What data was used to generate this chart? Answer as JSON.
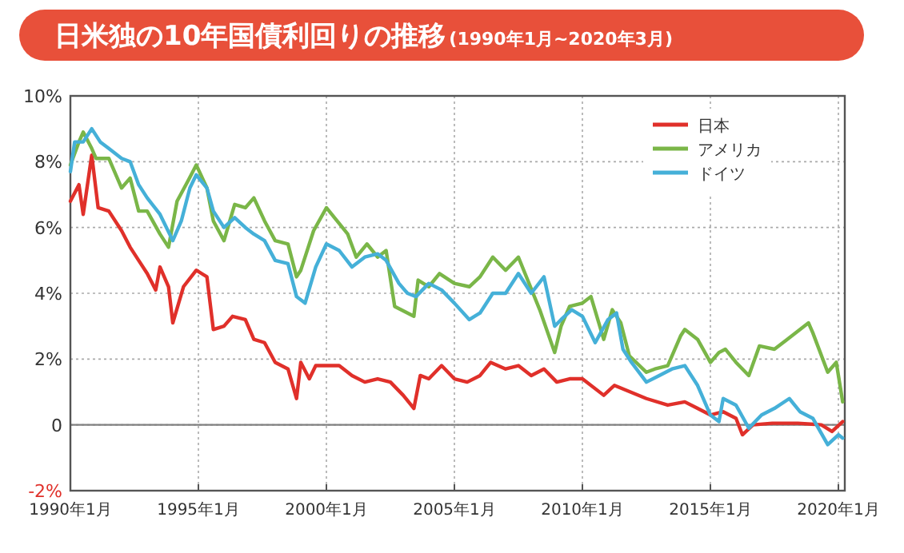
{
  "chart_data": {
    "type": "line",
    "title": "日米独の10年国債利回りの推移",
    "subtitle": "(1990年1月~2020年3月)",
    "xlim": [
      "1990-01",
      "2020-04"
    ],
    "xticks": [
      {
        "value": "1990-01",
        "label": "1990年1月"
      },
      {
        "value": "1995-01",
        "label": "1995年1月"
      },
      {
        "value": "2000-01",
        "label": "2000年1月"
      },
      {
        "value": "2005-01",
        "label": "2005年1月"
      },
      {
        "value": "2010-01",
        "label": "2010年1月"
      },
      {
        "value": "2015-01",
        "label": "2015年1月"
      },
      {
        "value": "2020-01",
        "label": "2020年1月"
      }
    ],
    "ylim": [
      -2,
      10
    ],
    "yticks": [
      {
        "value": -2,
        "label": "-2%"
      },
      {
        "value": 0,
        "label": "0"
      },
      {
        "value": 2,
        "label": "2%"
      },
      {
        "value": 4,
        "label": "4%"
      },
      {
        "value": 6,
        "label": "6%"
      },
      {
        "value": 8,
        "label": "8%"
      },
      {
        "value": 10,
        "label": "10%"
      }
    ],
    "grid": true,
    "legend": "top right",
    "marker": "none",
    "line_style": "solid",
    "ref_lines": [
      {
        "axis": "y",
        "value": 0,
        "color": "#808080"
      }
    ],
    "series": [
      {
        "name": "日本",
        "color": "#e0302a",
        "x": [
          "1990-01",
          "1990-05",
          "1990-07",
          "1990-11",
          "1991-02",
          "1991-07",
          "1992-01",
          "1992-05",
          "1992-09",
          "1993-01",
          "1993-05",
          "1993-07",
          "1993-11",
          "1994-01",
          "1994-06",
          "1994-12",
          "1995-05",
          "1995-08",
          "1996-01",
          "1996-05",
          "1996-11",
          "1997-03",
          "1997-08",
          "1998-01",
          "1998-07",
          "1998-11",
          "1999-01",
          "1999-05",
          "1999-08",
          "2000-01",
          "2000-07",
          "2001-01",
          "2001-07",
          "2002-01",
          "2002-07",
          "2003-01",
          "2003-06",
          "2003-09",
          "2004-01",
          "2004-07",
          "2005-01",
          "2005-07",
          "2006-01",
          "2006-06",
          "2007-01",
          "2007-07",
          "2008-01",
          "2008-07",
          "2009-01",
          "2009-07",
          "2010-01",
          "2010-11",
          "2011-04",
          "2012-07",
          "2013-05",
          "2014-01",
          "2014-07",
          "2015-01",
          "2015-07",
          "2016-01",
          "2016-04",
          "2016-09",
          "2017-06",
          "2018-06",
          "2019-05",
          "2019-10",
          "2020-03"
        ],
        "values": [
          6.8,
          7.3,
          6.4,
          8.2,
          6.6,
          6.5,
          5.9,
          5.4,
          5.0,
          4.6,
          4.1,
          4.8,
          4.2,
          3.1,
          4.2,
          4.7,
          4.5,
          2.9,
          3.0,
          3.3,
          3.2,
          2.6,
          2.5,
          1.9,
          1.7,
          0.8,
          1.9,
          1.4,
          1.8,
          1.8,
          1.8,
          1.5,
          1.3,
          1.4,
          1.3,
          0.9,
          0.5,
          1.5,
          1.4,
          1.8,
          1.4,
          1.3,
          1.5,
          1.9,
          1.7,
          1.8,
          1.5,
          1.7,
          1.3,
          1.4,
          1.4,
          0.9,
          1.2,
          0.8,
          0.6,
          0.7,
          0.5,
          0.3,
          0.4,
          0.2,
          -0.3,
          0.0,
          0.05,
          0.05,
          0.0,
          -0.2,
          0.1
        ]
      },
      {
        "name": "アメリカ",
        "color": "#7ab648",
        "x": [
          "1990-01",
          "1990-05",
          "1990-07",
          "1990-11",
          "1991-01",
          "1991-07",
          "1992-01",
          "1992-05",
          "1992-09",
          "1993-01",
          "1993-07",
          "1993-11",
          "1994-03",
          "1994-08",
          "1994-12",
          "1995-05",
          "1995-08",
          "1996-01",
          "1996-06",
          "1996-11",
          "1997-03",
          "1997-08",
          "1998-01",
          "1998-07",
          "1998-11",
          "1999-01",
          "1999-07",
          "2000-01",
          "2000-06",
          "2000-11",
          "2001-03",
          "2001-08",
          "2002-01",
          "2002-05",
          "2002-09",
          "2003-06",
          "2003-08",
          "2004-01",
          "2004-06",
          "2005-01",
          "2005-08",
          "2006-01",
          "2006-07",
          "2007-01",
          "2007-07",
          "2008-05",
          "2008-12",
          "2009-03",
          "2009-07",
          "2010-01",
          "2010-05",
          "2010-11",
          "2011-03",
          "2011-07",
          "2011-11",
          "2012-07",
          "2012-11",
          "2013-05",
          "2013-11",
          "2014-01",
          "2014-07",
          "2015-01",
          "2015-05",
          "2015-08",
          "2016-01",
          "2016-07",
          "2016-12",
          "2017-07",
          "2018-01",
          "2018-11",
          "2019-01",
          "2019-08",
          "2019-12",
          "2020-03"
        ],
        "values": [
          7.9,
          8.6,
          8.9,
          8.4,
          8.1,
          8.1,
          7.2,
          7.5,
          6.5,
          6.5,
          5.8,
          5.4,
          6.8,
          7.4,
          7.9,
          7.2,
          6.2,
          5.6,
          6.7,
          6.6,
          6.9,
          6.2,
          5.6,
          5.5,
          4.5,
          4.7,
          5.9,
          6.6,
          6.2,
          5.8,
          5.1,
          5.5,
          5.1,
          5.3,
          3.6,
          3.3,
          4.4,
          4.2,
          4.6,
          4.3,
          4.2,
          4.5,
          5.1,
          4.7,
          5.1,
          3.5,
          2.2,
          3.0,
          3.6,
          3.7,
          3.9,
          2.6,
          3.5,
          3.1,
          2.1,
          1.6,
          1.7,
          1.8,
          2.7,
          2.9,
          2.6,
          1.9,
          2.2,
          2.3,
          1.9,
          1.5,
          2.4,
          2.3,
          2.6,
          3.1,
          2.8,
          1.6,
          1.9,
          0.7
        ]
      },
      {
        "name": "ドイツ",
        "color": "#45b0d8",
        "x": [
          "1990-01",
          "1990-03",
          "1990-07",
          "1990-11",
          "1991-03",
          "1991-07",
          "1992-01",
          "1992-05",
          "1992-09",
          "1993-01",
          "1993-07",
          "1994-01",
          "1994-05",
          "1994-09",
          "1994-12",
          "1995-05",
          "1995-08",
          "1996-01",
          "1996-06",
          "1996-11",
          "1997-03",
          "1997-08",
          "1998-01",
          "1998-07",
          "1998-11",
          "1999-03",
          "1999-08",
          "2000-01",
          "2000-07",
          "2001-01",
          "2001-07",
          "2002-01",
          "2002-05",
          "2002-11",
          "2003-03",
          "2003-07",
          "2004-01",
          "2004-07",
          "2005-01",
          "2005-08",
          "2006-01",
          "2006-07",
          "2007-01",
          "2007-07",
          "2008-01",
          "2008-07",
          "2008-12",
          "2009-03",
          "2009-08",
          "2010-01",
          "2010-07",
          "2011-01",
          "2011-05",
          "2011-08",
          "2011-12",
          "2012-07",
          "2013-01",
          "2013-07",
          "2014-01",
          "2014-07",
          "2015-01",
          "2015-05",
          "2015-07",
          "2016-01",
          "2016-07",
          "2017-01",
          "2017-07",
          "2018-02",
          "2018-07",
          "2019-01",
          "2019-08",
          "2020-01",
          "2020-03"
        ],
        "values": [
          7.7,
          8.6,
          8.6,
          9.0,
          8.6,
          8.4,
          8.1,
          8.0,
          7.3,
          6.9,
          6.4,
          5.6,
          6.2,
          7.2,
          7.6,
          7.2,
          6.5,
          6.0,
          6.3,
          6.0,
          5.8,
          5.6,
          5.0,
          4.9,
          3.9,
          3.7,
          4.8,
          5.5,
          5.3,
          4.8,
          5.1,
          5.2,
          5.0,
          4.3,
          4.0,
          3.9,
          4.3,
          4.1,
          3.7,
          3.2,
          3.4,
          4.0,
          4.0,
          4.6,
          4.0,
          4.5,
          3.0,
          3.2,
          3.5,
          3.3,
          2.5,
          3.2,
          3.4,
          2.3,
          1.9,
          1.3,
          1.5,
          1.7,
          1.8,
          1.2,
          0.3,
          0.1,
          0.8,
          0.6,
          -0.1,
          0.3,
          0.5,
          0.8,
          0.4,
          0.2,
          -0.6,
          -0.3,
          -0.4
        ]
      }
    ]
  }
}
